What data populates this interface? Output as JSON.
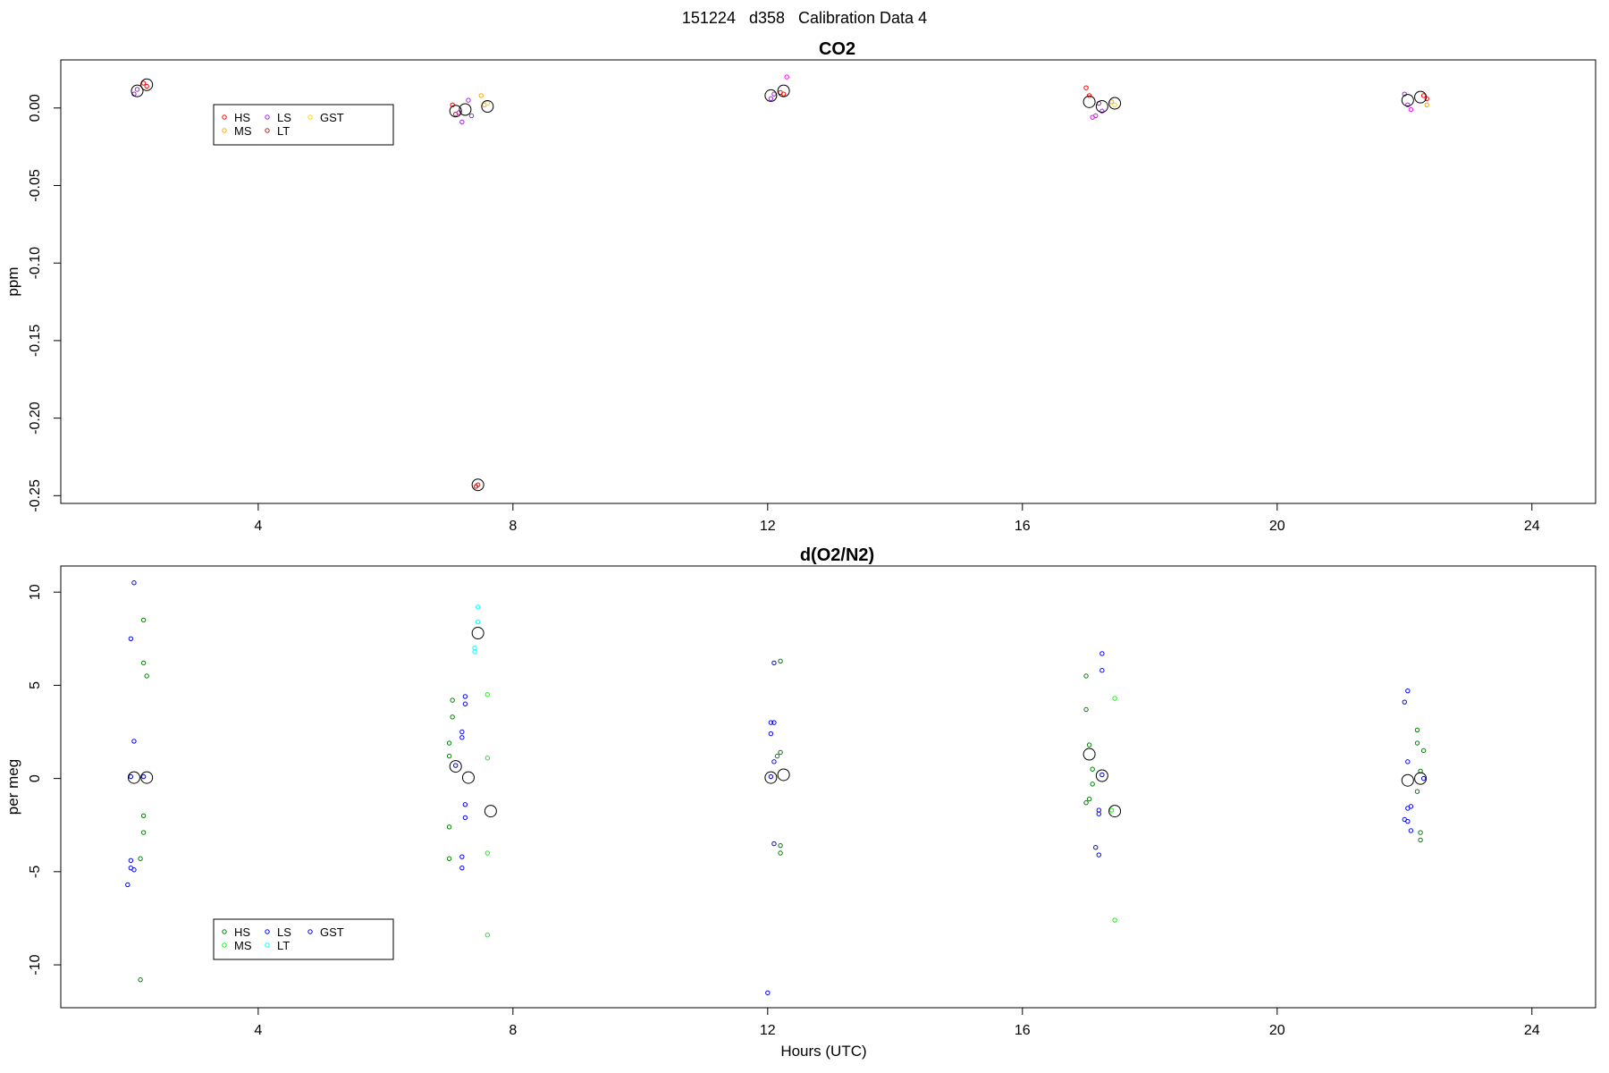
{
  "title": "151224   d358   Calibration Data 4",
  "chart_data": [
    {
      "type": "scatter",
      "title": "CO2",
      "xlabel": "",
      "ylabel": "ppm",
      "xlim": [
        0.9,
        25
      ],
      "ylim": [
        -0.255,
        0.031
      ],
      "xticks": [
        4,
        8,
        12,
        16,
        20,
        24
      ],
      "yticks": [
        0.0,
        -0.05,
        -0.1,
        -0.15,
        -0.2,
        -0.25
      ],
      "ytick_labels": [
        "0.00",
        "-0.05",
        "-0.10",
        "-0.15",
        "-0.20",
        "-0.25"
      ],
      "legend": {
        "position": "top-left",
        "columns": 3
      },
      "series": [
        {
          "name": "HS",
          "color": "#ff0000",
          "points": [
            [
              2.2,
              0.016
            ],
            [
              2.25,
              0.014
            ],
            [
              7.05,
              0.002
            ],
            [
              7.1,
              -0.004
            ],
            [
              12.2,
              0.01
            ],
            [
              12.25,
              0.009
            ],
            [
              17.0,
              0.013
            ],
            [
              17.05,
              0.008
            ],
            [
              22.3,
              0.008
            ],
            [
              22.35,
              0.006
            ]
          ]
        },
        {
          "name": "MS",
          "color": "#ffa500",
          "points": [
            [
              7.5,
              0.008
            ],
            [
              7.55,
              0.002
            ],
            [
              17.4,
              0.004
            ],
            [
              22.35,
              0.002
            ]
          ]
        },
        {
          "name": "LS",
          "color": "#a020f0",
          "points": [
            [
              2.05,
              0.009
            ],
            [
              2.1,
              0.012
            ],
            [
              7.2,
              -0.009
            ],
            [
              7.3,
              0.005
            ],
            [
              7.35,
              -0.005
            ],
            [
              12.05,
              0.006
            ],
            [
              12.1,
              0.009
            ],
            [
              17.2,
              0.003
            ],
            [
              17.25,
              -0.002
            ],
            [
              22.0,
              0.009
            ],
            [
              22.05,
              0.002
            ]
          ]
        },
        {
          "name": "LT",
          "color": "#b22222",
          "points": [
            [
              7.45,
              -0.243
            ],
            [
              7.42,
              -0.244
            ]
          ]
        },
        {
          "name": "GST",
          "color": "#ffd700",
          "points": [
            [
              7.6,
              0.003
            ],
            [
              17.45,
              0.002
            ]
          ]
        },
        {
          "name": "",
          "color": "#ff00ff",
          "points": [
            [
              7.15,
              -0.003
            ],
            [
              17.1,
              -0.006
            ],
            [
              17.15,
              -0.005
            ],
            [
              22.1,
              -0.001
            ],
            [
              12.3,
              0.02
            ]
          ]
        }
      ],
      "means": [
        [
          2.1,
          0.011
        ],
        [
          2.25,
          0.015
        ],
        [
          7.1,
          -0.002
        ],
        [
          7.25,
          -0.001
        ],
        [
          7.45,
          -0.243
        ],
        [
          7.6,
          0.001
        ],
        [
          12.05,
          0.008
        ],
        [
          12.25,
          0.011
        ],
        [
          17.05,
          0.004
        ],
        [
          17.25,
          0.001
        ],
        [
          17.45,
          0.003
        ],
        [
          22.05,
          0.005
        ],
        [
          22.25,
          0.007
        ]
      ]
    },
    {
      "type": "scatter",
      "title": "d(O2/N2)",
      "xlabel": "Hours (UTC)",
      "ylabel": "per meg",
      "xlim": [
        0.9,
        25
      ],
      "ylim": [
        -12.3,
        11.4
      ],
      "xticks": [
        4,
        8,
        12,
        16,
        20,
        24
      ],
      "yticks": [
        10,
        5,
        0,
        -5,
        -10
      ],
      "ytick_labels": [
        "10",
        "5",
        "0",
        "-5",
        "-10"
      ],
      "legend": {
        "position": "bottom-left",
        "columns": 3
      },
      "series": [
        {
          "name": "HS",
          "color": "#008000",
          "points": [
            [
              2.2,
              8.5
            ],
            [
              2.2,
              6.2
            ],
            [
              2.25,
              5.5
            ],
            [
              2.2,
              -2.0
            ],
            [
              2.2,
              -2.9
            ],
            [
              2.15,
              -4.3
            ],
            [
              2.15,
              -10.8
            ],
            [
              7.05,
              4.2
            ],
            [
              7.05,
              3.3
            ],
            [
              7.0,
              1.9
            ],
            [
              7.0,
              1.2
            ],
            [
              7.0,
              -2.6
            ],
            [
              7.0,
              -4.3
            ],
            [
              12.2,
              6.3
            ],
            [
              12.2,
              1.4
            ],
            [
              12.15,
              1.2
            ],
            [
              12.2,
              -3.6
            ],
            [
              12.2,
              -4.0
            ],
            [
              17.0,
              5.5
            ],
            [
              17.0,
              3.7
            ],
            [
              17.05,
              1.8
            ],
            [
              17.1,
              0.5
            ],
            [
              17.1,
              -0.3
            ],
            [
              17.05,
              -1.1
            ],
            [
              17.0,
              -1.3
            ],
            [
              22.2,
              2.6
            ],
            [
              22.2,
              1.9
            ],
            [
              22.3,
              1.5
            ],
            [
              22.25,
              0.4
            ],
            [
              22.2,
              -0.7
            ],
            [
              22.25,
              -2.9
            ],
            [
              22.25,
              -3.3
            ]
          ]
        },
        {
          "name": "MS",
          "color": "#00ff00",
          "points": [
            [
              7.6,
              4.5
            ],
            [
              7.6,
              1.1
            ],
            [
              7.6,
              -4.0
            ],
            [
              7.6,
              -8.4
            ],
            [
              17.45,
              4.3
            ],
            [
              17.45,
              -7.6
            ],
            [
              17.4,
              -1.7
            ]
          ]
        },
        {
          "name": "LS",
          "color": "#0000ff",
          "points": [
            [
              2.05,
              10.5
            ],
            [
              2.0,
              7.5
            ],
            [
              2.05,
              2.0
            ],
            [
              2.0,
              -4.4
            ],
            [
              2.0,
              -4.8
            ],
            [
              2.05,
              -4.9
            ],
            [
              1.95,
              -5.7
            ],
            [
              7.25,
              4.4
            ],
            [
              7.25,
              4.0
            ],
            [
              7.2,
              2.5
            ],
            [
              7.2,
              2.2
            ],
            [
              7.25,
              -1.4
            ],
            [
              7.25,
              -2.1
            ],
            [
              7.2,
              -4.2
            ],
            [
              7.2,
              -4.8
            ],
            [
              12.1,
              6.2
            ],
            [
              12.05,
              3.0
            ],
            [
              12.1,
              3.0
            ],
            [
              12.05,
              2.4
            ],
            [
              12.1,
              0.9
            ],
            [
              12.1,
              -3.5
            ],
            [
              12.0,
              -11.5
            ],
            [
              17.25,
              6.7
            ],
            [
              17.25,
              5.8
            ],
            [
              17.2,
              -1.7
            ],
            [
              17.2,
              -1.9
            ],
            [
              17.15,
              -3.7
            ],
            [
              17.2,
              -4.1
            ],
            [
              22.05,
              4.7
            ],
            [
              22.0,
              4.1
            ],
            [
              22.05,
              0.9
            ],
            [
              22.1,
              -1.5
            ],
            [
              22.05,
              -1.6
            ],
            [
              22.0,
              -2.2
            ],
            [
              22.05,
              -2.3
            ],
            [
              22.1,
              -2.8
            ]
          ]
        },
        {
          "name": "LT",
          "color": "#00ffff",
          "points": [
            [
              7.45,
              9.2
            ],
            [
              7.45,
              8.4
            ],
            [
              7.4,
              7.0
            ],
            [
              7.4,
              6.8
            ]
          ]
        },
        {
          "name": "GST",
          "color": "#0000cd",
          "points": [
            [
              2.0,
              0.1
            ],
            [
              2.2,
              0.1
            ],
            [
              7.1,
              0.7
            ],
            [
              12.05,
              0.1
            ],
            [
              17.25,
              0.2
            ],
            [
              22.3,
              0.0
            ]
          ]
        }
      ],
      "means": [
        [
          2.05,
          0.05
        ],
        [
          2.25,
          0.05
        ],
        [
          7.1,
          0.65
        ],
        [
          7.3,
          0.05
        ],
        [
          7.45,
          7.8
        ],
        [
          7.65,
          -1.75
        ],
        [
          12.05,
          0.05
        ],
        [
          12.25,
          0.2
        ],
        [
          17.05,
          1.3
        ],
        [
          17.25,
          0.15
        ],
        [
          17.45,
          -1.75
        ],
        [
          22.05,
          -0.1
        ],
        [
          22.25,
          0.0
        ]
      ]
    }
  ]
}
